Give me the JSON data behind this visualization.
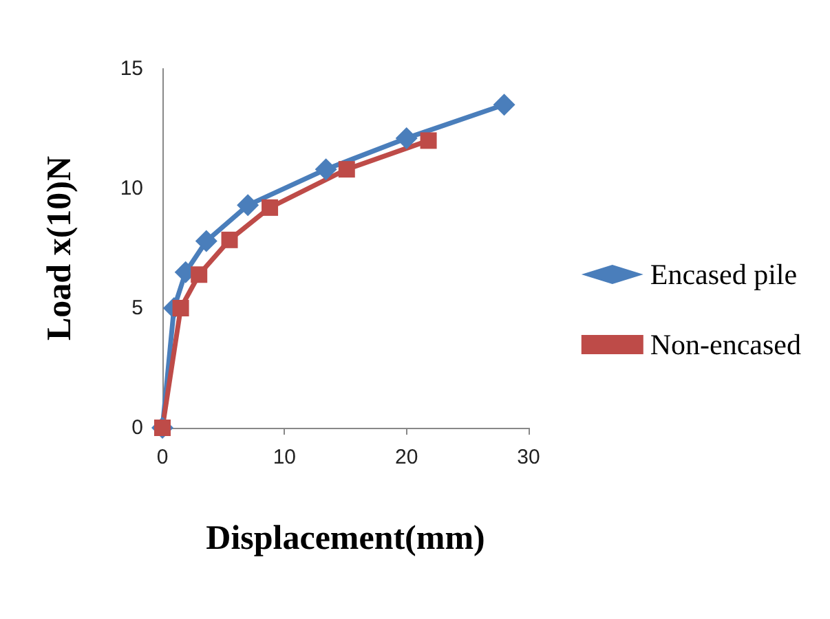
{
  "chart_data": {
    "type": "line",
    "xlabel": "Displacement(mm)",
    "ylabel": "Load x(10)N",
    "xlim": [
      0,
      30
    ],
    "xticks": [
      0,
      10,
      20,
      30
    ],
    "ylim": [
      0,
      15
    ],
    "yticks": [
      0,
      5,
      10,
      15
    ],
    "grid": false,
    "legend": "right",
    "line_style": "solid",
    "series": [
      {
        "name": "Encased pile",
        "color": "#4a7ebb",
        "marker": "diamond",
        "x": [
          0,
          0.95,
          1.9,
          3.6,
          7.0,
          13.4,
          20.0,
          28.0
        ],
        "values": [
          0,
          5.0,
          6.5,
          7.8,
          9.3,
          10.8,
          12.1,
          13.5
        ]
      },
      {
        "name": "Non-encased",
        "color": "#be4b48",
        "marker": "square",
        "x": [
          0,
          1.5,
          3.0,
          5.5,
          8.8,
          15.1,
          21.8
        ],
        "values": [
          0,
          5.0,
          6.4,
          7.85,
          9.2,
          10.8,
          12.0
        ]
      }
    ]
  }
}
